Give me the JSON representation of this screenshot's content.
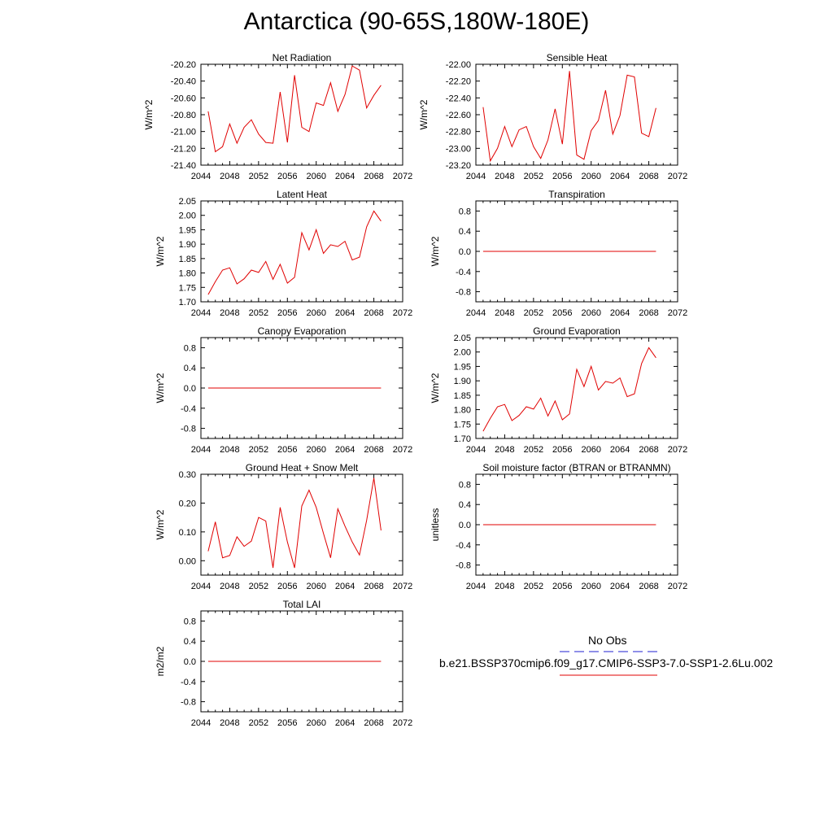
{
  "page": {
    "title": "Antarctica (90-65S,180W-180E)"
  },
  "legend": {
    "obs_label": "No Obs",
    "case_label": "b.e21.BSSP370cmip6.f09_g17.CMIP6-SSP3-7.0-SSP1-2.6Lu.002",
    "obs_color": "#1f1fd0",
    "case_color": "#e00000"
  },
  "chart_data": [
    {
      "type": "line",
      "title": "Net Radiation",
      "ylabel": "W/m^2",
      "xlim": [
        2044,
        2072
      ],
      "ylim": [
        -21.4,
        -20.2
      ],
      "xticks": [
        2044,
        2048,
        2052,
        2056,
        2060,
        2064,
        2068,
        2072
      ],
      "yticks": [
        -21.4,
        -21.2,
        -21.0,
        -20.8,
        -20.6,
        -20.4,
        -20.2
      ],
      "ytick_decimals": 2,
      "x": [
        2045,
        2046,
        2047,
        2048,
        2049,
        2050,
        2051,
        2052,
        2053,
        2054,
        2055,
        2056,
        2057,
        2058,
        2059,
        2060,
        2061,
        2062,
        2063,
        2064,
        2065,
        2066,
        2067,
        2068,
        2069
      ],
      "series": [
        {
          "name": "b.e21.BSSP370cmip6.f09_g17.CMIP6-SSP3-7.0-SSP1-2.6Lu.002",
          "values": [
            -20.76,
            -21.24,
            -21.18,
            -20.91,
            -21.14,
            -20.95,
            -20.86,
            -21.03,
            -21.13,
            -21.14,
            -20.53,
            -21.13,
            -20.33,
            -20.95,
            -21.0,
            -20.66,
            -20.69,
            -20.42,
            -20.76,
            -20.56,
            -20.22,
            -20.27,
            -20.72,
            -20.57,
            -20.45
          ]
        }
      ]
    },
    {
      "type": "line",
      "title": "Sensible Heat",
      "ylabel": "W/m^2",
      "xlim": [
        2044,
        2072
      ],
      "ylim": [
        -23.2,
        -22.0
      ],
      "xticks": [
        2044,
        2048,
        2052,
        2056,
        2060,
        2064,
        2068,
        2072
      ],
      "yticks": [
        -23.2,
        -23.0,
        -22.8,
        -22.6,
        -22.4,
        -22.2,
        -22.0
      ],
      "ytick_decimals": 2,
      "x": [
        2045,
        2046,
        2047,
        2048,
        2049,
        2050,
        2051,
        2052,
        2053,
        2054,
        2055,
        2056,
        2057,
        2058,
        2059,
        2060,
        2061,
        2062,
        2063,
        2064,
        2065,
        2066,
        2067,
        2068,
        2069
      ],
      "series": [
        {
          "name": "b.e21.BSSP370cmip6.f09_g17.CMIP6-SSP3-7.0-SSP1-2.6Lu.002",
          "values": [
            -22.51,
            -23.15,
            -23.0,
            -22.74,
            -22.98,
            -22.78,
            -22.74,
            -22.98,
            -23.12,
            -22.9,
            -22.53,
            -22.95,
            -22.08,
            -23.08,
            -23.13,
            -22.79,
            -22.67,
            -22.31,
            -22.83,
            -22.61,
            -22.13,
            -22.15,
            -22.82,
            -22.86,
            -22.52
          ]
        }
      ]
    },
    {
      "type": "line",
      "title": "Latent Heat",
      "ylabel": "W/m^2",
      "xlim": [
        2044,
        2072
      ],
      "ylim": [
        1.7,
        2.05
      ],
      "xticks": [
        2044,
        2048,
        2052,
        2056,
        2060,
        2064,
        2068,
        2072
      ],
      "yticks": [
        1.7,
        1.75,
        1.8,
        1.85,
        1.9,
        1.95,
        2.0,
        2.05
      ],
      "ytick_decimals": 2,
      "x": [
        2045,
        2046,
        2047,
        2048,
        2049,
        2050,
        2051,
        2052,
        2053,
        2054,
        2055,
        2056,
        2057,
        2058,
        2059,
        2060,
        2061,
        2062,
        2063,
        2064,
        2065,
        2066,
        2067,
        2068,
        2069
      ],
      "series": [
        {
          "name": "b.e21.BSSP370cmip6.f09_g17.CMIP6-SSP3-7.0-SSP1-2.6Lu.002",
          "values": [
            1.725,
            1.77,
            1.81,
            1.818,
            1.762,
            1.78,
            1.81,
            1.802,
            1.84,
            1.778,
            1.83,
            1.765,
            1.785,
            1.94,
            1.88,
            1.95,
            1.868,
            1.898,
            1.892,
            1.91,
            1.845,
            1.855,
            1.96,
            2.015,
            1.98
          ]
        }
      ]
    },
    {
      "type": "line",
      "title": "Transpiration",
      "ylabel": "W/m^2",
      "xlim": [
        2044,
        2072
      ],
      "ylim": [
        -1.0,
        1.0
      ],
      "xticks": [
        2044,
        2048,
        2052,
        2056,
        2060,
        2064,
        2068,
        2072
      ],
      "yticks": [
        -0.8,
        -0.4,
        0.0,
        0.4,
        0.8
      ],
      "ytick_decimals": 1,
      "x": [
        2045,
        2046,
        2047,
        2048,
        2049,
        2050,
        2051,
        2052,
        2053,
        2054,
        2055,
        2056,
        2057,
        2058,
        2059,
        2060,
        2061,
        2062,
        2063,
        2064,
        2065,
        2066,
        2067,
        2068,
        2069
      ],
      "series": [
        {
          "name": "b.e21.BSSP370cmip6.f09_g17.CMIP6-SSP3-7.0-SSP1-2.6Lu.002",
          "values": [
            0,
            0,
            0,
            0,
            0,
            0,
            0,
            0,
            0,
            0,
            0,
            0,
            0,
            0,
            0,
            0,
            0,
            0,
            0,
            0,
            0,
            0,
            0,
            0,
            0
          ]
        }
      ]
    },
    {
      "type": "line",
      "title": "Canopy Evaporation",
      "ylabel": "W/m^2",
      "xlim": [
        2044,
        2072
      ],
      "ylim": [
        -1.0,
        1.0
      ],
      "xticks": [
        2044,
        2048,
        2052,
        2056,
        2060,
        2064,
        2068,
        2072
      ],
      "yticks": [
        -0.8,
        -0.4,
        0.0,
        0.4,
        0.8
      ],
      "ytick_decimals": 1,
      "x": [
        2045,
        2046,
        2047,
        2048,
        2049,
        2050,
        2051,
        2052,
        2053,
        2054,
        2055,
        2056,
        2057,
        2058,
        2059,
        2060,
        2061,
        2062,
        2063,
        2064,
        2065,
        2066,
        2067,
        2068,
        2069
      ],
      "series": [
        {
          "name": "b.e21.BSSP370cmip6.f09_g17.CMIP6-SSP3-7.0-SSP1-2.6Lu.002",
          "values": [
            0,
            0,
            0,
            0,
            0,
            0,
            0,
            0,
            0,
            0,
            0,
            0,
            0,
            0,
            0,
            0,
            0,
            0,
            0,
            0,
            0,
            0,
            0,
            0,
            0
          ]
        }
      ]
    },
    {
      "type": "line",
      "title": "Ground Evaporation",
      "ylabel": "W/m^2",
      "xlim": [
        2044,
        2072
      ],
      "ylim": [
        1.7,
        2.05
      ],
      "xticks": [
        2044,
        2048,
        2052,
        2056,
        2060,
        2064,
        2068,
        2072
      ],
      "yticks": [
        1.7,
        1.75,
        1.8,
        1.85,
        1.9,
        1.95,
        2.0,
        2.05
      ],
      "ytick_decimals": 2,
      "x": [
        2045,
        2046,
        2047,
        2048,
        2049,
        2050,
        2051,
        2052,
        2053,
        2054,
        2055,
        2056,
        2057,
        2058,
        2059,
        2060,
        2061,
        2062,
        2063,
        2064,
        2065,
        2066,
        2067,
        2068,
        2069
      ],
      "series": [
        {
          "name": "b.e21.BSSP370cmip6.f09_g17.CMIP6-SSP3-7.0-SSP1-2.6Lu.002",
          "values": [
            1.725,
            1.77,
            1.81,
            1.818,
            1.762,
            1.78,
            1.81,
            1.802,
            1.84,
            1.778,
            1.83,
            1.765,
            1.785,
            1.94,
            1.88,
            1.95,
            1.868,
            1.898,
            1.892,
            1.91,
            1.845,
            1.855,
            1.96,
            2.015,
            1.98
          ]
        }
      ]
    },
    {
      "type": "line",
      "title": "Ground Heat + Snow Melt",
      "ylabel": "W/m^2",
      "xlim": [
        2044,
        2072
      ],
      "ylim": [
        -0.05,
        0.3
      ],
      "xticks": [
        2044,
        2048,
        2052,
        2056,
        2060,
        2064,
        2068,
        2072
      ],
      "yticks": [
        0.0,
        0.1,
        0.2,
        0.3
      ],
      "ytick_decimals": 2,
      "x": [
        2045,
        2046,
        2047,
        2048,
        2049,
        2050,
        2051,
        2052,
        2053,
        2054,
        2055,
        2056,
        2057,
        2058,
        2059,
        2060,
        2061,
        2062,
        2063,
        2064,
        2065,
        2066,
        2067,
        2068,
        2069
      ],
      "series": [
        {
          "name": "b.e21.BSSP370cmip6.f09_g17.CMIP6-SSP3-7.0-SSP1-2.6Lu.002",
          "values": [
            0.033,
            0.135,
            0.01,
            0.018,
            0.083,
            0.05,
            0.068,
            0.15,
            0.138,
            -0.025,
            0.185,
            0.065,
            -0.025,
            0.19,
            0.245,
            0.185,
            0.095,
            0.01,
            0.18,
            0.12,
            0.065,
            0.02,
            0.14,
            0.287,
            0.105
          ]
        }
      ]
    },
    {
      "type": "line",
      "title": "Soil moisture factor (BTRAN or BTRANMN)",
      "ylabel": "unitless",
      "xlim": [
        2044,
        2072
      ],
      "ylim": [
        -1.0,
        1.0
      ],
      "xticks": [
        2044,
        2048,
        2052,
        2056,
        2060,
        2064,
        2068,
        2072
      ],
      "yticks": [
        -0.8,
        -0.4,
        0.0,
        0.4,
        0.8
      ],
      "ytick_decimals": 1,
      "x": [
        2045,
        2046,
        2047,
        2048,
        2049,
        2050,
        2051,
        2052,
        2053,
        2054,
        2055,
        2056,
        2057,
        2058,
        2059,
        2060,
        2061,
        2062,
        2063,
        2064,
        2065,
        2066,
        2067,
        2068,
        2069
      ],
      "series": [
        {
          "name": "b.e21.BSSP370cmip6.f09_g17.CMIP6-SSP3-7.0-SSP1-2.6Lu.002",
          "values": [
            0,
            0,
            0,
            0,
            0,
            0,
            0,
            0,
            0,
            0,
            0,
            0,
            0,
            0,
            0,
            0,
            0,
            0,
            0,
            0,
            0,
            0,
            0,
            0,
            0
          ]
        }
      ]
    },
    {
      "type": "line",
      "title": "Total LAI",
      "ylabel": "m2/m2",
      "xlim": [
        2044,
        2072
      ],
      "ylim": [
        -1.0,
        1.0
      ],
      "xticks": [
        2044,
        2048,
        2052,
        2056,
        2060,
        2064,
        2068,
        2072
      ],
      "yticks": [
        -0.8,
        -0.4,
        0.0,
        0.4,
        0.8
      ],
      "ytick_decimals": 1,
      "x": [
        2045,
        2046,
        2047,
        2048,
        2049,
        2050,
        2051,
        2052,
        2053,
        2054,
        2055,
        2056,
        2057,
        2058,
        2059,
        2060,
        2061,
        2062,
        2063,
        2064,
        2065,
        2066,
        2067,
        2068,
        2069
      ],
      "series": [
        {
          "name": "b.e21.BSSP370cmip6.f09_g17.CMIP6-SSP3-7.0-SSP1-2.6Lu.002",
          "values": [
            0,
            0,
            0,
            0,
            0,
            0,
            0,
            0,
            0,
            0,
            0,
            0,
            0,
            0,
            0,
            0,
            0,
            0,
            0,
            0,
            0,
            0,
            0,
            0,
            0
          ]
        }
      ]
    }
  ]
}
